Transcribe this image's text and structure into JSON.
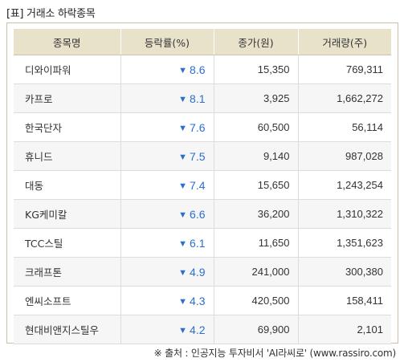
{
  "title": "[표] 거래소 하락종목",
  "headers": [
    "종목명",
    "등락률(%)",
    "종가(원)",
    "거래량(주)"
  ],
  "rows": [
    {
      "name": "디와이파워",
      "change": "8.6",
      "close": "15,350",
      "volume": "769,311"
    },
    {
      "name": "카프로",
      "change": "8.1",
      "close": "3,925",
      "volume": "1,662,272"
    },
    {
      "name": "한국단자",
      "change": "7.6",
      "close": "60,500",
      "volume": "56,114"
    },
    {
      "name": "휴니드",
      "change": "7.5",
      "close": "9,140",
      "volume": "987,028"
    },
    {
      "name": "대동",
      "change": "7.4",
      "close": "15,650",
      "volume": "1,243,254"
    },
    {
      "name": "KG케미칼",
      "change": "6.6",
      "close": "36,200",
      "volume": "1,310,322"
    },
    {
      "name": "TCC스틸",
      "change": "6.1",
      "close": "11,650",
      "volume": "1,351,623"
    },
    {
      "name": "크래프톤",
      "change": "4.9",
      "close": "241,000",
      "volume": "300,380"
    },
    {
      "name": "엔씨소프트",
      "change": "4.3",
      "close": "420,500",
      "volume": "158,411"
    },
    {
      "name": "현대비앤지스틸우",
      "change": "4.2",
      "close": "69,900",
      "volume": "2,101"
    }
  ],
  "down_icon": "down-triangle-icon",
  "down_color": "#2b6fcf",
  "header_color": "#e9e2cb",
  "source": "※ 출처 : 인공지능 투자비서 'AI라씨로' (www.rassiro.com)"
}
